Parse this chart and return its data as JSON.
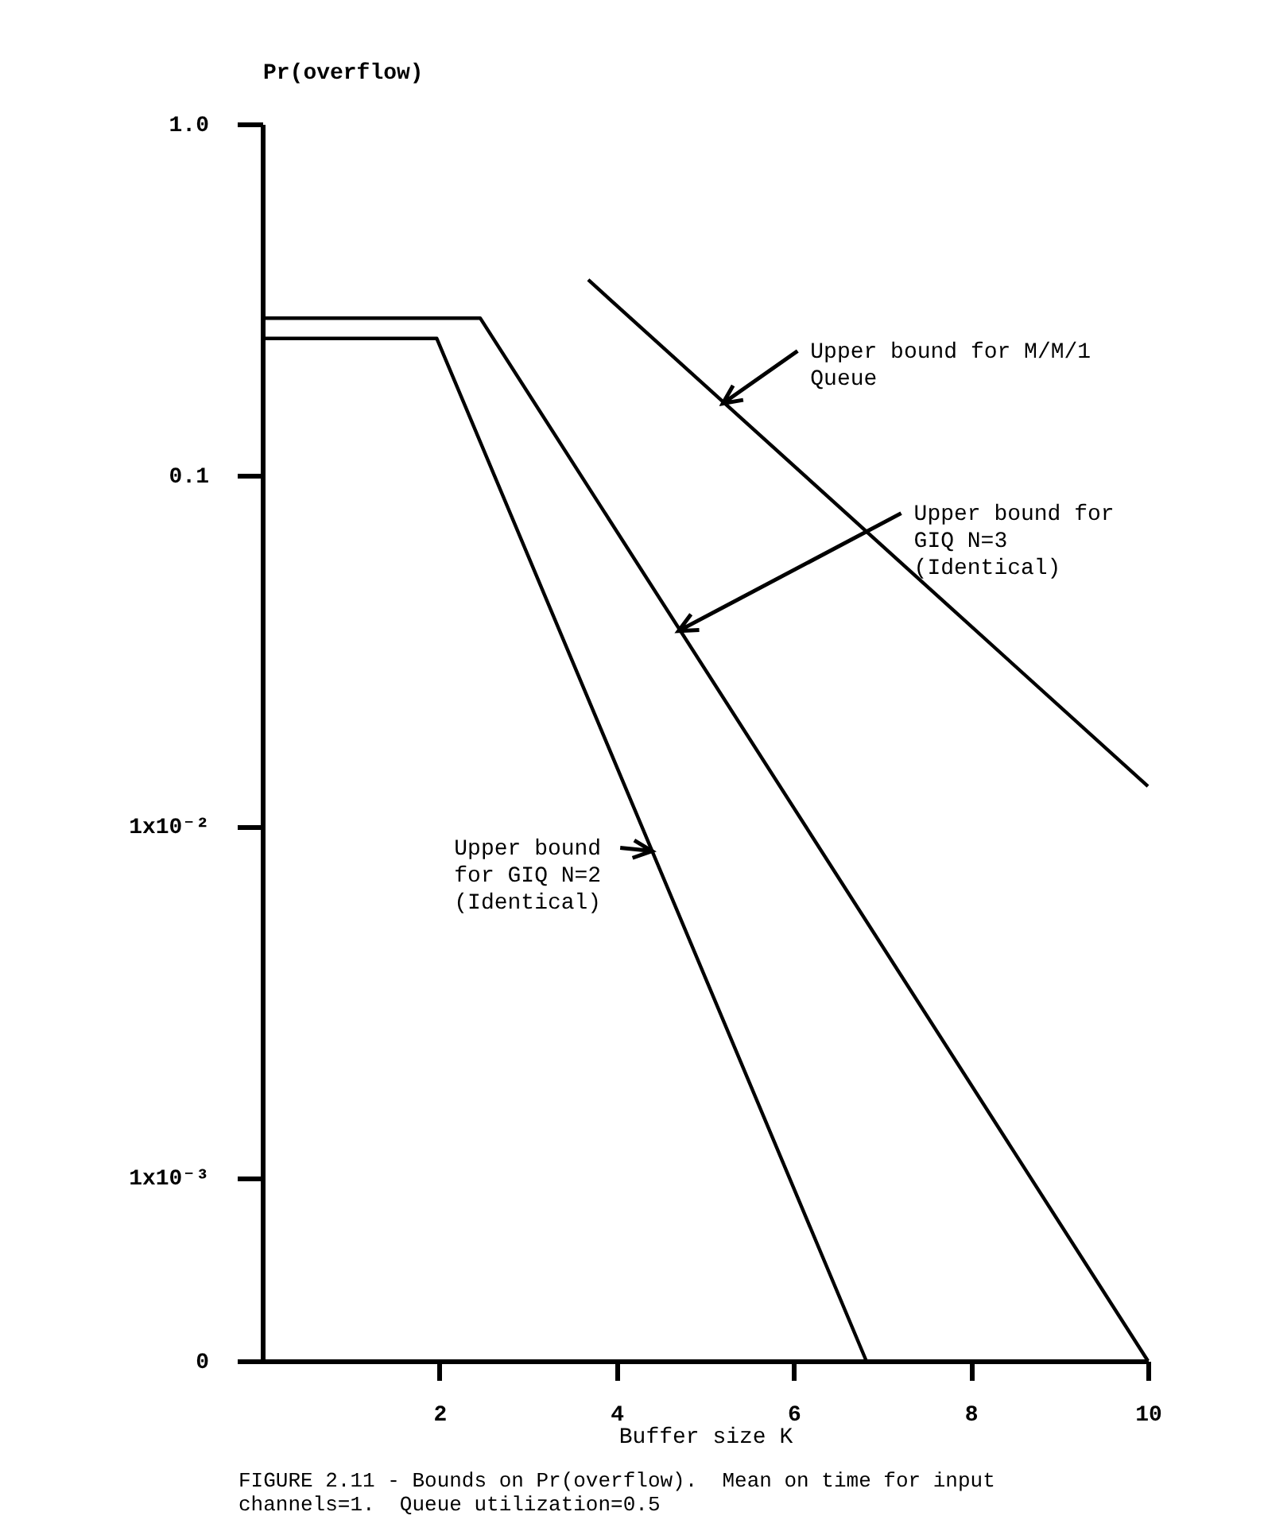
{
  "chart_data": {
    "type": "line",
    "xlabel": "Buffer size K",
    "ylabel": "Pr(overflow)",
    "log": "y",
    "xlim": [
      0,
      10
    ],
    "xticks": [
      2,
      4,
      6,
      8,
      10
    ],
    "ylim": [
      0.0003,
      1
    ],
    "yticks": [
      {
        "value": 0.0003,
        "label": "0"
      },
      {
        "value": 0.001,
        "label": "1x10⁻³"
      },
      {
        "value": 0.01,
        "label": "1x10⁻²"
      },
      {
        "value": 0.1,
        "label": "0.1"
      },
      {
        "value": 1,
        "label": "1.0"
      }
    ],
    "grid": false,
    "marker": "none",
    "line_style": "solid",
    "series": [
      {
        "color": "#000000",
        "x": [
          3.68,
          10
        ],
        "values": [
          0.36,
          0.013
        ]
      },
      {
        "color": "#000000",
        "x": [
          0,
          2.46,
          10
        ],
        "values": [
          0.28,
          0.28,
          0.0003
        ]
      },
      {
        "color": "#000000",
        "x": [
          0,
          1.97,
          6.82
        ],
        "values": [
          0.245,
          0.245,
          0.0003
        ]
      }
    ],
    "annotations": [
      {
        "text": "Upper bound for M/M/1\nQueue",
        "x": 5.2,
        "y": 0.16
      },
      {
        "text": "Upper bound for\nGIQ N=3\n(Identical)",
        "x": 4.7,
        "y": 0.036
      },
      {
        "text": "Upper bound\nfor GIQ N=2\n(Identical)",
        "x": 4.4,
        "y": 0.0085
      },
      "FIGURE 2.11 - Bounds on Pr(overflow).  Mean on time for input\nchannels=1.  Queue utilization=0.5"
    ]
  }
}
